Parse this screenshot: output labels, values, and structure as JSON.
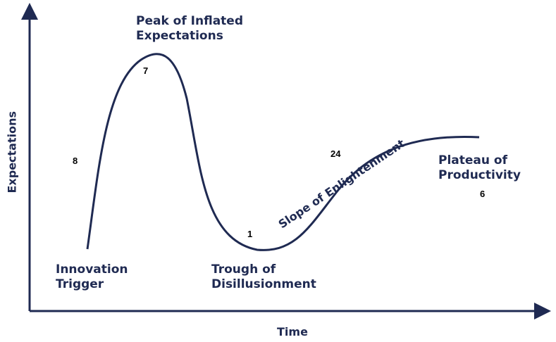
{
  "colors": {
    "curve": "#1f2a52",
    "axis": "#1f2a52",
    "count": "#000000"
  },
  "axes": {
    "x_label": "Time",
    "y_label": "Expectations"
  },
  "phases": [
    {
      "line1": "Innovation",
      "line2": "Trigger",
      "count": "8"
    },
    {
      "line1": "Peak of Inflated",
      "line2": "Expectations",
      "count": "7"
    },
    {
      "line1": "Trough of",
      "line2": "Disillusionment",
      "count": "1"
    },
    {
      "line1": "Slope of Enlightenment",
      "line2": "",
      "count": "24"
    },
    {
      "line1": "Plateau of",
      "line2": "Productivity",
      "count": "6"
    }
  ]
}
